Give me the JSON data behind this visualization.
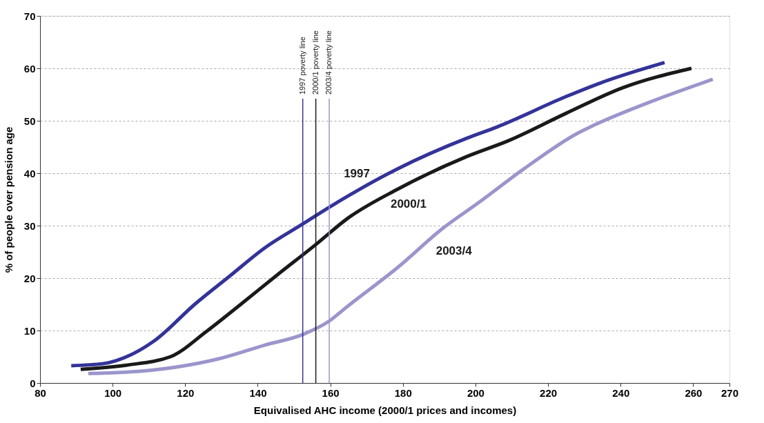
{
  "chart_data": {
    "type": "line",
    "xlabel": "Equivalised AHC income (2000/1 prices and incomes)",
    "ylabel": "% of people over pension age",
    "xlim": [
      80,
      270
    ],
    "xticks": [
      80,
      100,
      120,
      140,
      160,
      180,
      200,
      220,
      240,
      260,
      270
    ],
    "ylim": [
      0,
      70
    ],
    "yticks": [
      0,
      10,
      20,
      30,
      40,
      50,
      60,
      70
    ],
    "grid": "y",
    "marker": "none",
    "line_style": "solid",
    "series": [
      {
        "name": "1997",
        "color": "#333399",
        "x": [
          88.6,
          97.5,
          105.1,
          111.4,
          122.8,
          132.3,
          141.8,
          152.6,
          159.7,
          178.7,
          197.7,
          205.9,
          224.9,
          234.4,
          252.1
        ],
        "values": [
          3.3,
          3.7,
          5.4,
          8.0,
          15.1,
          20.4,
          25.7,
          30.4,
          33.5,
          40.9,
          46.7,
          48.8,
          54.6,
          57.2,
          61.1
        ]
      },
      {
        "name": "2000/1",
        "color": "#1a1a1a",
        "x": [
          91.2,
          103.8,
          115.9,
          126,
          135.5,
          145,
          156,
          164.6,
          178.7,
          197.7,
          209.1,
          224.9,
          240.6,
          259.5
        ],
        "values": [
          2.6,
          3.4,
          5.0,
          9.9,
          15.1,
          20.4,
          26.4,
          31.3,
          37,
          43.2,
          46.2,
          51.4,
          56.3,
          60
        ]
      },
      {
        "name": "2003/4",
        "color": "#9b95cc",
        "x": [
          93.3,
          110.2,
          129.2,
          141.8,
          152.6,
          159.7,
          164,
          178.7,
          191.2,
          200.7,
          213.5,
          228.1,
          232.5,
          247.1,
          265.4
        ],
        "values": [
          1.8,
          2.4,
          4.6,
          7.2,
          9.3,
          11.8,
          14.2,
          22.1,
          29.6,
          34.3,
          40.9,
          47.6,
          49.1,
          53.3,
          57.9
        ]
      }
    ],
    "ref_lines": [
      {
        "axis": "x",
        "value": 152.4,
        "label": "1997 poverty line",
        "color": "#333399"
      },
      {
        "axis": "x",
        "value": 156,
        "label": "2000/1 poverty line",
        "color": "#1a1a1a"
      },
      {
        "axis": "x",
        "value": 159.7,
        "label": "2003/4 poverty line",
        "color": "#9b95cc"
      }
    ]
  }
}
